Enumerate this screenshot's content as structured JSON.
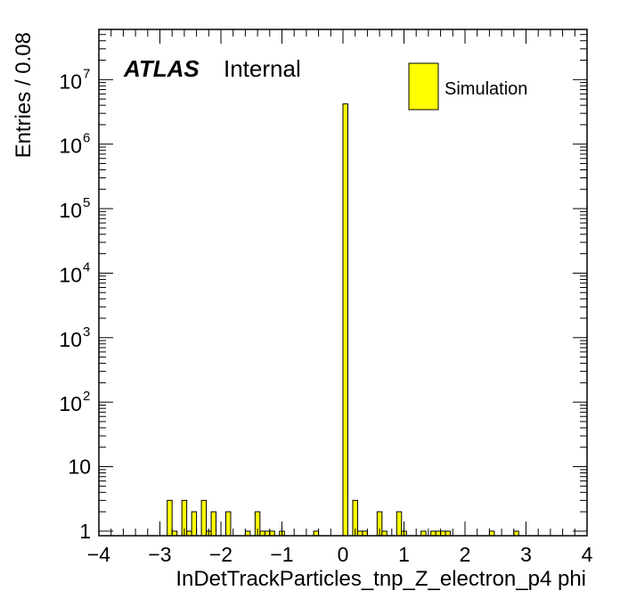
{
  "atlas_label": {
    "brand": "ATLAS",
    "status": "Internal"
  },
  "legend": {
    "entries": [
      {
        "label": "Simulation",
        "color": "#ffff00"
      }
    ]
  },
  "chart_data": {
    "type": "bar",
    "title": "",
    "xlabel": "InDetTrackParticles_tnp_Z_electron_p4 phi",
    "ylabel": "Entries / 0.08",
    "xlim": [
      -4,
      4
    ],
    "ylim": [
      0.85,
      60000000
    ],
    "yscale": "log",
    "bin_width": 0.08,
    "x_ticks": [
      -4,
      -3,
      -2,
      -1,
      0,
      1,
      2,
      3,
      4
    ],
    "x_tick_labels": [
      "−4",
      "−3",
      "−2",
      "−1",
      "0",
      "1",
      "2",
      "3",
      "4"
    ],
    "y_ticks": [
      1,
      10,
      100,
      1000,
      10000,
      100000,
      1000000,
      10000000
    ],
    "y_tick_labels": [
      {
        "base": "1",
        "exp": ""
      },
      {
        "base": "10",
        "exp": ""
      },
      {
        "base": "10",
        "exp": "2"
      },
      {
        "base": "10",
        "exp": "3"
      },
      {
        "base": "10",
        "exp": "4"
      },
      {
        "base": "10",
        "exp": "5"
      },
      {
        "base": "10",
        "exp": "6"
      },
      {
        "base": "10",
        "exp": "7"
      }
    ],
    "fill_color": "#ffff00",
    "edge_color": "#000000",
    "grid": false,
    "legend_position": "top-right",
    "series": [
      {
        "name": "Simulation",
        "bins": [
          [
            -2.88,
            -2.8,
            3
          ],
          [
            -2.8,
            -2.72,
            1
          ],
          [
            -2.64,
            -2.56,
            3
          ],
          [
            -2.56,
            -2.48,
            1
          ],
          [
            -2.48,
            -2.4,
            2
          ],
          [
            -2.32,
            -2.24,
            3
          ],
          [
            -2.24,
            -2.16,
            1
          ],
          [
            -2.16,
            -2.08,
            2
          ],
          [
            -1.92,
            -1.84,
            2
          ],
          [
            -1.6,
            -1.52,
            1
          ],
          [
            -1.44,
            -1.36,
            2
          ],
          [
            -1.36,
            -1.28,
            1
          ],
          [
            -1.28,
            -1.2,
            1
          ],
          [
            -1.2,
            -1.12,
            1
          ],
          [
            -1.04,
            -0.96,
            1
          ],
          [
            -0.48,
            -0.4,
            1
          ],
          [
            0.0,
            0.08,
            4200000
          ],
          [
            0.16,
            0.24,
            3
          ],
          [
            0.24,
            0.32,
            1
          ],
          [
            0.32,
            0.4,
            1
          ],
          [
            0.56,
            0.64,
            2
          ],
          [
            0.64,
            0.72,
            1
          ],
          [
            0.88,
            0.96,
            2
          ],
          [
            0.96,
            1.04,
            1
          ],
          [
            1.28,
            1.36,
            1
          ],
          [
            1.44,
            1.52,
            1
          ],
          [
            1.52,
            1.6,
            1
          ],
          [
            1.6,
            1.68,
            1
          ],
          [
            1.68,
            1.76,
            1
          ],
          [
            2.4,
            2.48,
            1
          ],
          [
            2.8,
            2.88,
            1
          ]
        ]
      }
    ]
  }
}
